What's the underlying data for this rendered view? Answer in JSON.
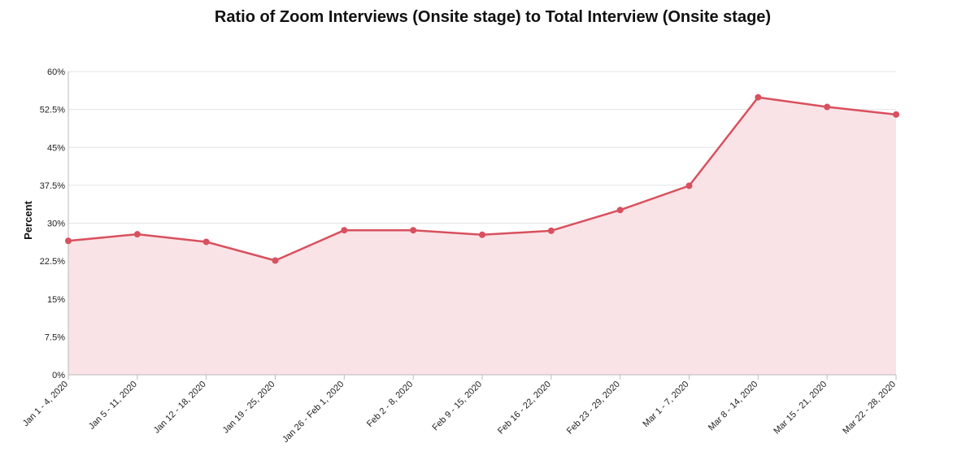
{
  "chart_data": {
    "type": "area",
    "title": "Ratio of Zoom Interviews (Onsite stage) to Total Interview (Onsite stage)",
    "xlabel": "",
    "ylabel": "Percent",
    "ylim": [
      0,
      60
    ],
    "y_ticks": [
      "0%",
      "7.5%",
      "15%",
      "22.5%",
      "30%",
      "37.5%",
      "45%",
      "52.5%",
      "60%"
    ],
    "y_tick_values": [
      0,
      7.5,
      15,
      22.5,
      30,
      37.5,
      45,
      52.5,
      60
    ],
    "grid": true,
    "legend": "none",
    "categories": [
      "Jan 1 - 4, 2020",
      "Jan 5 - 11, 2020",
      "Jan 12 - 18, 2020",
      "Jan 19 - 25, 2020",
      "Jan 26 - Feb 1, 2020",
      "Feb 2 - 8, 2020",
      "Feb 9 - 15, 2020",
      "Feb 16 - 22, 2020",
      "Feb 23 - 29, 2020",
      "Mar 1 - 7, 2020",
      "Mar 8 - 14, 2020",
      "Mar 15 - 21, 2020",
      "Mar 22 - 28, 2020"
    ],
    "series": [
      {
        "values": [
          26.5,
          27.8,
          26.3,
          22.6,
          28.6,
          28.6,
          27.7,
          28.5,
          32.6,
          37.4,
          54.9,
          53.0,
          51.5
        ]
      }
    ],
    "colors": {
      "line": "#d9505e",
      "fill": "#fae3e6",
      "grid": "#e3e3e3",
      "axis": "#bbbbbb"
    }
  }
}
